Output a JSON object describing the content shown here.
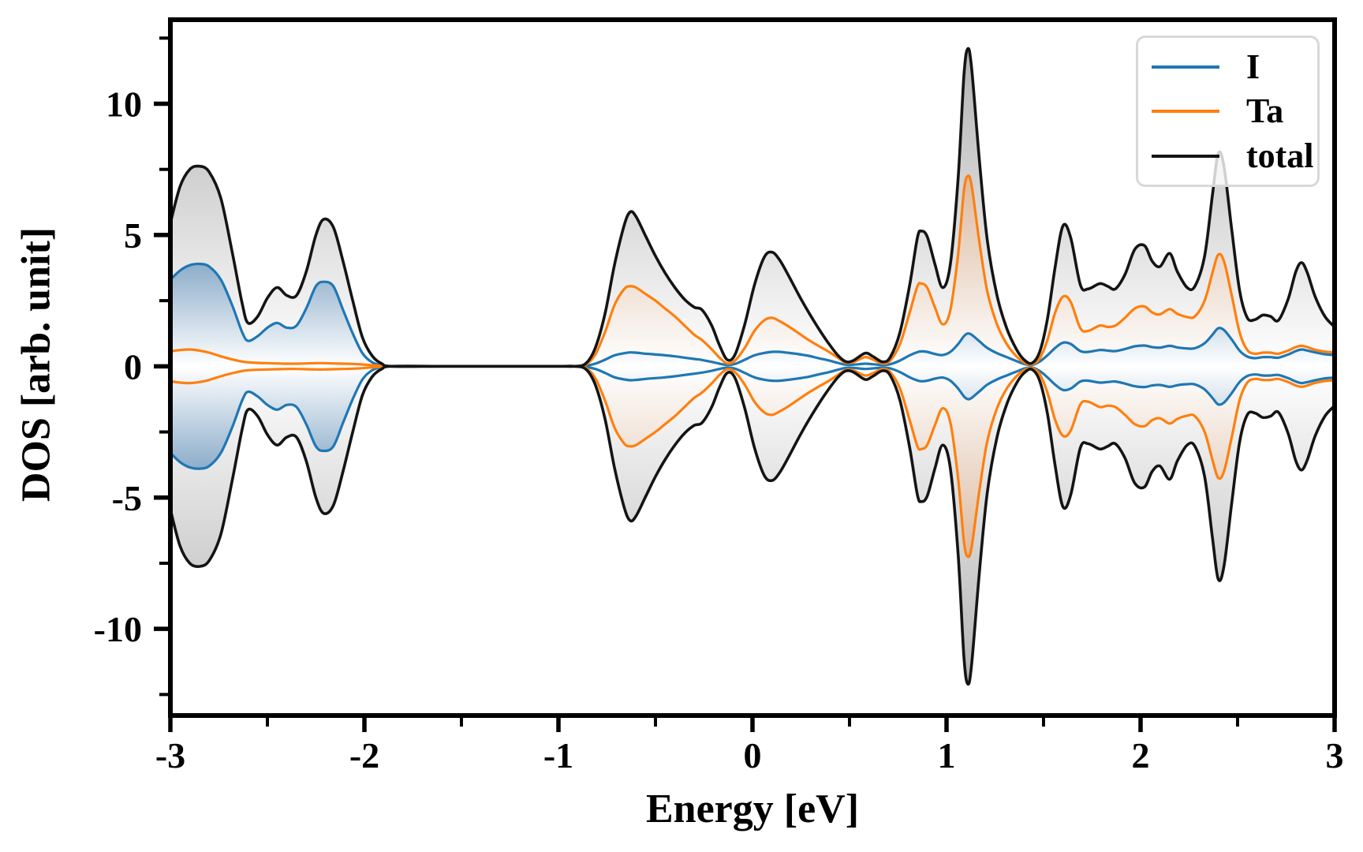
{
  "figure": {
    "background": "#ffffff"
  },
  "axes": {
    "xlabel": "Energy [eV]",
    "ylabel": "DOS [arb. unit]",
    "xlim": [
      -3,
      3
    ],
    "ylim": [
      -13.3,
      13.2
    ],
    "x_major_ticks": [
      -3,
      -2,
      -1,
      0,
      1,
      2,
      3
    ],
    "x_major_labels": [
      "-3",
      "-2",
      "-1",
      "0",
      "1",
      "2",
      "3"
    ],
    "x_minor_ticks": [
      -2.5,
      -1.5,
      -0.5,
      0.5,
      1.5,
      2.5
    ],
    "y_major_ticks": [
      -10,
      -5,
      0,
      5,
      10
    ],
    "y_major_labels": [
      "-10",
      "-5",
      "0",
      "5",
      "10"
    ],
    "y_minor_ticks": [
      -12.5,
      -7.5,
      -2.5,
      2.5,
      7.5,
      12.5
    ],
    "grid": "off",
    "tick_label_fontsize_px": 46
  },
  "legend": {
    "position": "upper right",
    "entries": [
      {
        "label": "I",
        "color": "#1f77b4"
      },
      {
        "label": "Ta",
        "color": "#ff7f0e"
      },
      {
        "label": "total",
        "color": "#141414"
      }
    ]
  },
  "chart_data": {
    "type": "area",
    "description": "Spin-polarized density of states: positive lobes are spin-up, negative lobes are spin-down (mirror of spin-up). Gradient-shaded fills between each curve and zero.",
    "xlabel": "Energy [eV]",
    "ylabel": "DOS [arb. unit]",
    "band_gap_region": [
      -1.86,
      -0.86
    ],
    "spin_down": "mirror of spin_up (values negated)",
    "x": [
      -3,
      -2.95,
      -2.9,
      -2.85,
      -2.8,
      -2.74,
      -2.68,
      -2.63,
      -2.6,
      -2.55,
      -2.5,
      -2.45,
      -2.4,
      -2.35,
      -2.3,
      -2.25,
      -2.21,
      -2.16,
      -2.11,
      -2.06,
      -2.01,
      -1.96,
      -1.91,
      -1.86,
      -1.6,
      -1.3,
      -1,
      -0.92,
      -0.86,
      -0.81,
      -0.76,
      -0.71,
      -0.66,
      -0.63,
      -0.6,
      -0.55,
      -0.5,
      -0.45,
      -0.4,
      -0.35,
      -0.3,
      -0.26,
      -0.21,
      -0.17,
      -0.13,
      -0.09,
      -0.04,
      0.01,
      0.06,
      0.1,
      0.14,
      0.19,
      0.24,
      0.29,
      0.34,
      0.39,
      0.44,
      0.48,
      0.52,
      0.58,
      0.62,
      0.67,
      0.71,
      0.76,
      0.81,
      0.85,
      0.87,
      0.9,
      0.94,
      0.98,
      1.02,
      1.06,
      1.09,
      1.11,
      1.13,
      1.17,
      1.21,
      1.26,
      1.31,
      1.36,
      1.4,
      1.44,
      1.48,
      1.52,
      1.56,
      1.6,
      1.64,
      1.69,
      1.73,
      1.79,
      1.83,
      1.87,
      1.92,
      1.97,
      2.02,
      2.06,
      2.1,
      2.15,
      2.19,
      2.24,
      2.28,
      2.33,
      2.37,
      2.4,
      2.43,
      2.47,
      2.51,
      2.55,
      2.59,
      2.63,
      2.67,
      2.71,
      2.76,
      2.8,
      2.83,
      2.86,
      2.9,
      2.95,
      3
    ],
    "series": [
      {
        "name": "I",
        "line_color": "#1f77b4",
        "fill_max_color": "#4e81ad",
        "fill_saturate_at": 6,
        "values_spin_up": [
          3.3,
          3.65,
          3.85,
          3.9,
          3.8,
          3.3,
          2.3,
          1.3,
          0.97,
          1.15,
          1.47,
          1.65,
          1.47,
          1.55,
          2.2,
          3.05,
          3.22,
          3.05,
          2.15,
          1.25,
          0.5,
          0.15,
          0.04,
          0,
          0,
          0,
          0,
          0,
          0.02,
          0.1,
          0.25,
          0.42,
          0.5,
          0.53,
          0.52,
          0.48,
          0.45,
          0.42,
          0.38,
          0.33,
          0.28,
          0.24,
          0.17,
          0.1,
          0.05,
          0.09,
          0.25,
          0.42,
          0.51,
          0.55,
          0.55,
          0.51,
          0.46,
          0.4,
          0.31,
          0.23,
          0.13,
          0.06,
          0.06,
          0.1,
          0.08,
          0.05,
          0.08,
          0.22,
          0.42,
          0.54,
          0.57,
          0.55,
          0.47,
          0.43,
          0.55,
          0.85,
          1.15,
          1.25,
          1.2,
          0.95,
          0.7,
          0.5,
          0.35,
          0.2,
          0.09,
          0.05,
          0.18,
          0.42,
          0.7,
          0.9,
          0.85,
          0.58,
          0.55,
          0.62,
          0.6,
          0.58,
          0.66,
          0.76,
          0.79,
          0.73,
          0.71,
          0.78,
          0.72,
          0.68,
          0.69,
          0.88,
          1.2,
          1.45,
          1.38,
          1.02,
          0.6,
          0.37,
          0.31,
          0.35,
          0.35,
          0.33,
          0.45,
          0.58,
          0.64,
          0.6,
          0.53,
          0.46,
          0.43
        ]
      },
      {
        "name": "Ta",
        "line_color": "#ff7f0e",
        "fill_max_color": "#bf8050",
        "fill_saturate_at": 13.2,
        "values_spin_up": [
          0.57,
          0.62,
          0.64,
          0.6,
          0.52,
          0.38,
          0.26,
          0.18,
          0.15,
          0.13,
          0.12,
          0.11,
          0.1,
          0.1,
          0.11,
          0.12,
          0.12,
          0.11,
          0.1,
          0.09,
          0.07,
          0.04,
          0.02,
          0,
          0,
          0,
          0,
          0,
          0.06,
          0.45,
          1.3,
          2.35,
          2.95,
          3.05,
          3,
          2.75,
          2.5,
          2.2,
          1.9,
          1.55,
          1.2,
          1,
          0.65,
          0.33,
          0.11,
          0.22,
          0.7,
          1.35,
          1.75,
          1.85,
          1.72,
          1.5,
          1.25,
          1,
          0.78,
          0.57,
          0.33,
          0.14,
          0.16,
          0.35,
          0.26,
          0.11,
          0.22,
          0.85,
          2.05,
          3.05,
          3.15,
          3,
          2.25,
          1.6,
          2.15,
          4.3,
          6.7,
          7.25,
          6.85,
          4.7,
          2.85,
          1.6,
          0.85,
          0.38,
          0.15,
          0.07,
          0.3,
          1,
          2.05,
          2.65,
          2.45,
          1.45,
          1.35,
          1.55,
          1.5,
          1.55,
          1.85,
          2.2,
          2.28,
          2.05,
          1.98,
          2.18,
          2,
          1.88,
          1.9,
          2.5,
          3.55,
          4.25,
          4,
          2.7,
          1.3,
          0.62,
          0.48,
          0.52,
          0.52,
          0.48,
          0.6,
          0.73,
          0.78,
          0.73,
          0.63,
          0.56,
          0.53
        ]
      },
      {
        "name": "total",
        "line_color": "#141414",
        "fill_max_color": "#ababab",
        "fill_saturate_at": 13.2,
        "values_spin_up": [
          5.45,
          6.85,
          7.5,
          7.62,
          7.4,
          6.4,
          4.3,
          2.4,
          1.65,
          1.9,
          2.6,
          3,
          2.7,
          2.7,
          3.6,
          5,
          5.6,
          5.3,
          4,
          2.5,
          1.1,
          0.4,
          0.1,
          0,
          0,
          0,
          0,
          0,
          0.1,
          0.7,
          2,
          3.9,
          5.4,
          5.88,
          5.7,
          4.95,
          4.2,
          3.55,
          3,
          2.55,
          2.25,
          2.15,
          1.55,
          0.8,
          0.25,
          0.45,
          1.6,
          3.1,
          4.15,
          4.35,
          4.05,
          3.4,
          2.7,
          2.05,
          1.45,
          0.9,
          0.42,
          0.18,
          0.22,
          0.5,
          0.38,
          0.17,
          0.35,
          1.3,
          3.1,
          4.9,
          5.15,
          4.95,
          3.9,
          3,
          3.9,
          7.2,
          11.1,
          12.1,
          11.3,
          7.8,
          4.8,
          2.7,
          1.45,
          0.65,
          0.25,
          0.12,
          0.55,
          1.8,
          3.8,
          5.35,
          4.9,
          3.1,
          2.95,
          3.15,
          3.05,
          2.95,
          3.5,
          4.45,
          4.6,
          4,
          3.8,
          4.3,
          3.6,
          3,
          3.05,
          4.2,
          6.5,
          8.1,
          7.6,
          5.2,
          2.9,
          1.85,
          1.78,
          1.95,
          1.9,
          1.75,
          2.55,
          3.6,
          3.95,
          3.55,
          2.65,
          1.9,
          1.5
        ]
      }
    ]
  }
}
